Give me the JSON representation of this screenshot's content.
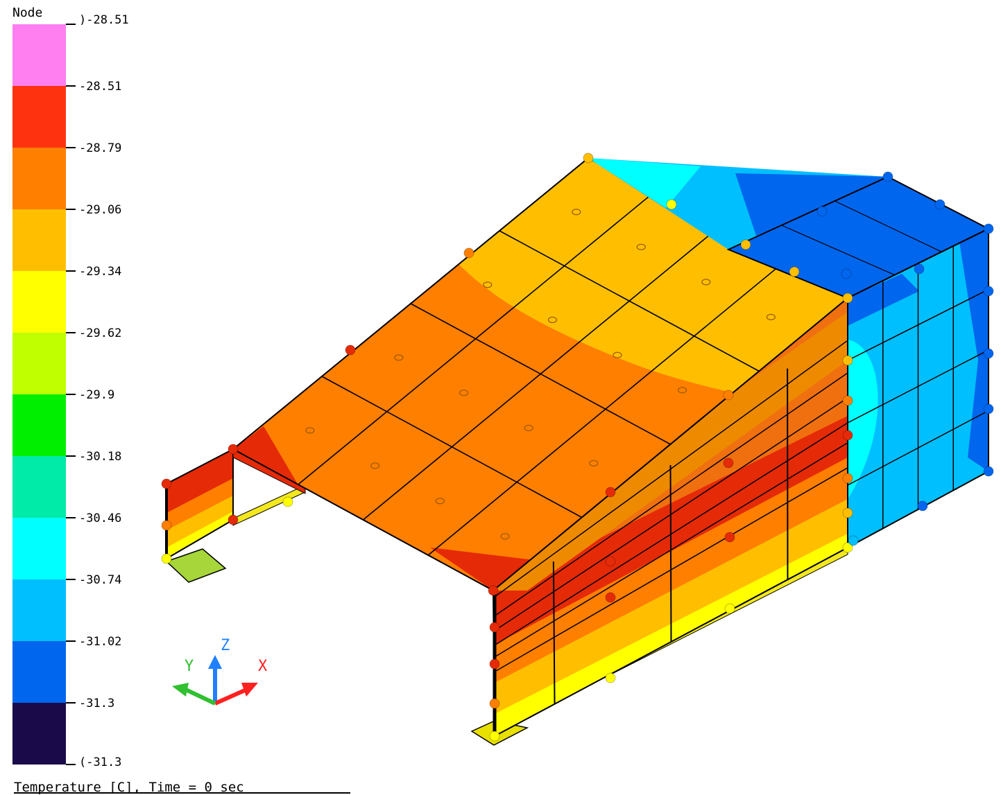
{
  "legend": {
    "title": "Node",
    "top_label": ")-28.51",
    "bottom_label": "(-31.3",
    "boundaries": [
      "-28.51",
      "-28.79",
      "-29.06",
      "-29.34",
      "-29.62",
      "-29.9",
      "-30.18",
      "-30.46",
      "-30.74",
      "-31.02",
      "-31.3"
    ],
    "bands": [
      {
        "color": "#ff7ff0",
        "range": ">-28.51"
      },
      {
        "color": "#ff3210",
        "range": "-28.79 to -28.51"
      },
      {
        "color": "#ff7f00",
        "range": "-29.06 to -28.79"
      },
      {
        "color": "#ffbf00",
        "range": "-29.34 to -29.06"
      },
      {
        "color": "#ffff00",
        "range": "-29.62 to -29.34"
      },
      {
        "color": "#bfff00",
        "range": "-29.9 to -29.62"
      },
      {
        "color": "#00ee00",
        "range": "-30.18 to -29.9"
      },
      {
        "color": "#00eaa8",
        "range": "-30.46 to -30.18"
      },
      {
        "color": "#00ffff",
        "range": "-30.74 to -30.46"
      },
      {
        "color": "#00bfff",
        "range": "-31.02 to -30.74"
      },
      {
        "color": "#0066ee",
        "range": "-31.3 to -31.02"
      },
      {
        "color": "#1a0a4a",
        "range": "<-31.3"
      }
    ]
  },
  "caption": "Temperature [C], Time = 0 sec",
  "triad": {
    "x_label": "X",
    "y_label": "Y",
    "z_label": "Z",
    "x_color": "#ff2020",
    "y_color": "#30c030",
    "z_color": "#2080ff"
  },
  "model_colors": {
    "roof_orange": "#ff7f00",
    "roof_amber": "#ffbf00",
    "wall_red": "#e52a08",
    "wall_amber": "#ffbf00",
    "wall_yellow": "#ffff00",
    "box_blue": "#0066ee",
    "box_lightblue": "#00bfff",
    "box_cyan": "#00ffff",
    "pad_green": "#a6d63a"
  }
}
